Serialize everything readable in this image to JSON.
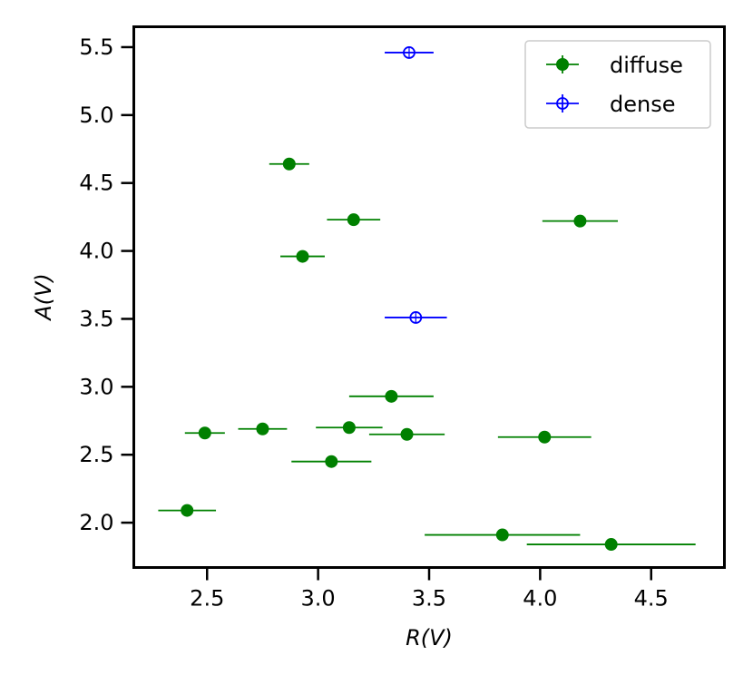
{
  "chart_data": {
    "type": "scatter",
    "title": "",
    "xlabel": "R(V)",
    "ylabel": "A(V)",
    "xlim": [
      2.17,
      4.83
    ],
    "ylim": [
      1.67,
      5.65
    ],
    "xticks": [
      2.5,
      3.0,
      3.5,
      4.0,
      4.5
    ],
    "yticks": [
      2.0,
      2.5,
      3.0,
      3.5,
      4.0,
      4.5,
      5.0,
      5.5
    ],
    "xtick_labels": [
      "2.5",
      "3.0",
      "3.5",
      "4.0",
      "4.5"
    ],
    "ytick_labels": [
      "2.0",
      "2.5",
      "3.0",
      "3.5",
      "4.0",
      "4.5",
      "5.0",
      "5.5"
    ],
    "grid": false,
    "legend_position": "top-right",
    "series": [
      {
        "name": "diffuse",
        "color": "#008000",
        "marker": "filled-circle",
        "points": [
          {
            "x": 2.87,
            "y": 4.64,
            "xerr": 0.09
          },
          {
            "x": 3.16,
            "y": 4.23,
            "xerr": 0.12
          },
          {
            "x": 4.18,
            "y": 4.22,
            "xerr": 0.17
          },
          {
            "x": 2.93,
            "y": 3.96,
            "xerr": 0.1
          },
          {
            "x": 3.33,
            "y": 2.93,
            "xerr": 0.19
          },
          {
            "x": 2.75,
            "y": 2.69,
            "xerr": 0.11
          },
          {
            "x": 3.14,
            "y": 2.7,
            "xerr": 0.15
          },
          {
            "x": 2.49,
            "y": 2.66,
            "xerr": 0.09
          },
          {
            "x": 3.4,
            "y": 2.65,
            "xerr": 0.17
          },
          {
            "x": 4.02,
            "y": 2.63,
            "xerr": 0.21
          },
          {
            "x": 3.06,
            "y": 2.45,
            "xerr": 0.18
          },
          {
            "x": 2.41,
            "y": 2.09,
            "xerr": 0.13
          },
          {
            "x": 3.83,
            "y": 1.91,
            "xerr": 0.35
          },
          {
            "x": 4.32,
            "y": 1.84,
            "xerr": 0.38
          }
        ]
      },
      {
        "name": "dense",
        "color": "#0000ff",
        "marker": "open-circle-crosshair",
        "points": [
          {
            "x": 3.41,
            "y": 5.46,
            "xerr": 0.11
          },
          {
            "x": 3.44,
            "y": 3.51,
            "xerr": 0.14
          }
        ]
      }
    ]
  }
}
